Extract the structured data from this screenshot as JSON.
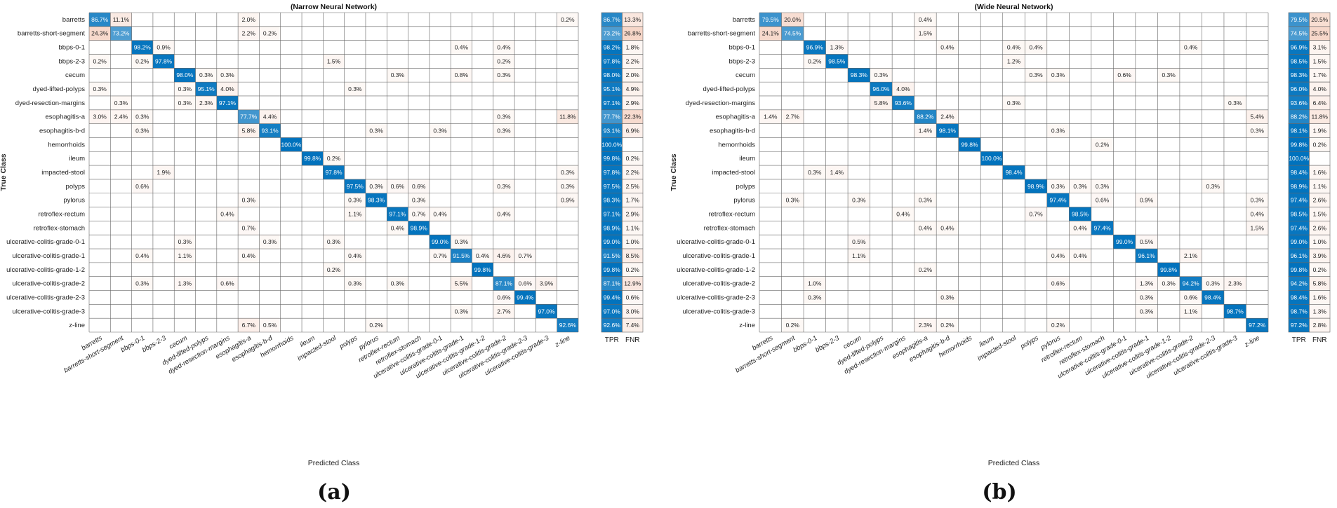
{
  "chart_data": [
    {
      "type": "heatmap",
      "title": "(Narrow Neural Network)",
      "panel_label": "(a)",
      "xlabel": "Predicted Class",
      "ylabel": "True Class",
      "summary_headers": [
        "TPR",
        "FNR"
      ],
      "classes": [
        "barretts",
        "barretts-short-segment",
        "bbps-0-1",
        "bbps-2-3",
        "cecum",
        "dyed-lifted-polyps",
        "dyed-resection-margins",
        "esophagitis-a",
        "esophagitis-b-d",
        "hemorrhoids",
        "ileum",
        "impacted-stool",
        "polyps",
        "pylorus",
        "retroflex-rectum",
        "retroflex-stomach",
        "ulcerative-colitis-grade-0-1",
        "ulcerative-colitis-grade-1",
        "ulcerative-colitis-grade-1-2",
        "ulcerative-colitis-grade-2",
        "ulcerative-colitis-grade-2-3",
        "ulcerative-colitis-grade-3",
        "z-line"
      ],
      "cells": [
        [
          0,
          0,
          "86.7%"
        ],
        [
          0,
          1,
          "11.1%"
        ],
        [
          0,
          7,
          "2.0%"
        ],
        [
          0,
          22,
          "0.2%"
        ],
        [
          1,
          0,
          "24.3%"
        ],
        [
          1,
          1,
          "73.2%"
        ],
        [
          1,
          7,
          "2.2%"
        ],
        [
          1,
          8,
          "0.2%"
        ],
        [
          2,
          2,
          "98.2%"
        ],
        [
          2,
          3,
          "0.9%"
        ],
        [
          2,
          17,
          "0.4%"
        ],
        [
          2,
          19,
          "0.4%"
        ],
        [
          3,
          0,
          "0.2%"
        ],
        [
          3,
          2,
          "0.2%"
        ],
        [
          3,
          3,
          "97.8%"
        ],
        [
          3,
          11,
          "1.5%"
        ],
        [
          3,
          19,
          "0.2%"
        ],
        [
          4,
          4,
          "98.0%"
        ],
        [
          4,
          5,
          "0.3%"
        ],
        [
          4,
          6,
          "0.3%"
        ],
        [
          4,
          14,
          "0.3%"
        ],
        [
          4,
          17,
          "0.8%"
        ],
        [
          4,
          19,
          "0.3%"
        ],
        [
          5,
          0,
          "0.3%"
        ],
        [
          5,
          4,
          "0.3%"
        ],
        [
          5,
          5,
          "95.1%"
        ],
        [
          5,
          6,
          "4.0%"
        ],
        [
          5,
          12,
          "0.3%"
        ],
        [
          6,
          1,
          "0.3%"
        ],
        [
          6,
          4,
          "0.3%"
        ],
        [
          6,
          5,
          "2.3%"
        ],
        [
          6,
          6,
          "97.1%"
        ],
        [
          7,
          0,
          "3.0%"
        ],
        [
          7,
          1,
          "2.4%"
        ],
        [
          7,
          2,
          "0.3%"
        ],
        [
          7,
          7,
          "77.7%"
        ],
        [
          7,
          8,
          "4.4%"
        ],
        [
          7,
          19,
          "0.3%"
        ],
        [
          7,
          22,
          "11.8%"
        ],
        [
          8,
          2,
          "0.3%"
        ],
        [
          8,
          7,
          "5.8%"
        ],
        [
          8,
          8,
          "93.1%"
        ],
        [
          8,
          13,
          "0.3%"
        ],
        [
          8,
          16,
          "0.3%"
        ],
        [
          8,
          19,
          "0.3%"
        ],
        [
          9,
          9,
          "100.0%"
        ],
        [
          10,
          10,
          "99.8%"
        ],
        [
          10,
          11,
          "0.2%"
        ],
        [
          11,
          3,
          "1.9%"
        ],
        [
          11,
          11,
          "97.8%"
        ],
        [
          11,
          22,
          "0.3%"
        ],
        [
          12,
          2,
          "0.6%"
        ],
        [
          12,
          12,
          "97.5%"
        ],
        [
          12,
          13,
          "0.3%"
        ],
        [
          12,
          14,
          "0.6%"
        ],
        [
          12,
          15,
          "0.6%"
        ],
        [
          12,
          19,
          "0.3%"
        ],
        [
          12,
          22,
          "0.3%"
        ],
        [
          13,
          7,
          "0.3%"
        ],
        [
          13,
          12,
          "0.3%"
        ],
        [
          13,
          13,
          "98.3%"
        ],
        [
          13,
          15,
          "0.3%"
        ],
        [
          13,
          22,
          "0.9%"
        ],
        [
          14,
          6,
          "0.4%"
        ],
        [
          14,
          12,
          "1.1%"
        ],
        [
          14,
          14,
          "97.1%"
        ],
        [
          14,
          15,
          "0.7%"
        ],
        [
          14,
          16,
          "0.4%"
        ],
        [
          14,
          19,
          "0.4%"
        ],
        [
          15,
          7,
          "0.7%"
        ],
        [
          15,
          14,
          "0.4%"
        ],
        [
          15,
          15,
          "98.9%"
        ],
        [
          16,
          4,
          "0.3%"
        ],
        [
          16,
          8,
          "0.3%"
        ],
        [
          16,
          11,
          "0.3%"
        ],
        [
          16,
          16,
          "99.0%"
        ],
        [
          16,
          17,
          "0.3%"
        ],
        [
          17,
          2,
          "0.4%"
        ],
        [
          17,
          4,
          "1.1%"
        ],
        [
          17,
          7,
          "0.4%"
        ],
        [
          17,
          12,
          "0.4%"
        ],
        [
          17,
          16,
          "0.7%"
        ],
        [
          17,
          17,
          "91.5%"
        ],
        [
          17,
          18,
          "0.4%"
        ],
        [
          17,
          19,
          "4.6%"
        ],
        [
          17,
          20,
          "0.7%"
        ],
        [
          18,
          11,
          "0.2%"
        ],
        [
          18,
          18,
          "99.8%"
        ],
        [
          19,
          2,
          "0.3%"
        ],
        [
          19,
          4,
          "1.3%"
        ],
        [
          19,
          6,
          "0.6%"
        ],
        [
          19,
          12,
          "0.3%"
        ],
        [
          19,
          14,
          "0.3%"
        ],
        [
          19,
          17,
          "5.5%"
        ],
        [
          19,
          19,
          "87.1%"
        ],
        [
          19,
          20,
          "0.6%"
        ],
        [
          19,
          21,
          "3.9%"
        ],
        [
          20,
          19,
          "0.6%"
        ],
        [
          20,
          20,
          "99.4%"
        ],
        [
          21,
          17,
          "0.3%"
        ],
        [
          21,
          19,
          "2.7%"
        ],
        [
          21,
          21,
          "97.0%"
        ],
        [
          22,
          7,
          "6.7%"
        ],
        [
          22,
          8,
          "0.5%"
        ],
        [
          22,
          13,
          "0.2%"
        ],
        [
          22,
          22,
          "92.6%"
        ]
      ],
      "tpr": [
        "86.7%",
        "73.2%",
        "98.2%",
        "97.8%",
        "98.0%",
        "95.1%",
        "97.1%",
        "77.7%",
        "93.1%",
        "100.0%",
        "99.8%",
        "97.8%",
        "97.5%",
        "98.3%",
        "97.1%",
        "98.9%",
        "99.0%",
        "91.5%",
        "99.8%",
        "87.1%",
        "99.4%",
        "97.0%",
        "92.6%"
      ],
      "fnr": [
        "13.3%",
        "26.8%",
        "1.8%",
        "2.2%",
        "2.0%",
        "4.9%",
        "2.9%",
        "22.3%",
        "6.9%",
        "",
        "0.2%",
        "2.2%",
        "2.5%",
        "1.7%",
        "2.9%",
        "1.1%",
        "1.0%",
        "8.5%",
        "0.2%",
        "12.9%",
        "0.6%",
        "3.0%",
        "7.4%"
      ]
    },
    {
      "type": "heatmap",
      "title": "(Wide Neural Network)",
      "panel_label": "(b)",
      "xlabel": "Predicted Class",
      "ylabel": "True Class",
      "summary_headers": [
        "TPR",
        "FNR"
      ],
      "classes": [
        "barretts",
        "barretts-short-segment",
        "bbps-0-1",
        "bbps-2-3",
        "cecum",
        "dyed-lifted-polyps",
        "dyed-resection-margins",
        "esophagitis-a",
        "esophagitis-b-d",
        "hemorrhoids",
        "ileum",
        "impacted-stool",
        "polyps",
        "pylorus",
        "retroflex-rectum",
        "retroflex-stomach",
        "ulcerative-colitis-grade-0-1",
        "ulcerative-colitis-grade-1",
        "ulcerative-colitis-grade-1-2",
        "ulcerative-colitis-grade-2",
        "ulcerative-colitis-grade-2-3",
        "ulcerative-colitis-grade-3",
        "z-line"
      ],
      "cells": [
        [
          0,
          0,
          "79.5%"
        ],
        [
          0,
          1,
          "20.0%"
        ],
        [
          0,
          7,
          "0.4%"
        ],
        [
          1,
          0,
          "24.1%"
        ],
        [
          1,
          1,
          "74.5%"
        ],
        [
          1,
          7,
          "1.5%"
        ],
        [
          2,
          2,
          "96.9%"
        ],
        [
          2,
          3,
          "1.3%"
        ],
        [
          2,
          8,
          "0.4%"
        ],
        [
          2,
          11,
          "0.4%"
        ],
        [
          2,
          12,
          "0.4%"
        ],
        [
          2,
          19,
          "0.4%"
        ],
        [
          3,
          2,
          "0.2%"
        ],
        [
          3,
          3,
          "98.5%"
        ],
        [
          3,
          11,
          "1.2%"
        ],
        [
          4,
          4,
          "98.3%"
        ],
        [
          4,
          5,
          "0.3%"
        ],
        [
          4,
          12,
          "0.3%"
        ],
        [
          4,
          13,
          "0.3%"
        ],
        [
          4,
          16,
          "0.6%"
        ],
        [
          4,
          18,
          "0.3%"
        ],
        [
          5,
          5,
          "96.0%"
        ],
        [
          5,
          6,
          "4.0%"
        ],
        [
          6,
          5,
          "5.8%"
        ],
        [
          6,
          6,
          "93.6%"
        ],
        [
          6,
          11,
          "0.3%"
        ],
        [
          6,
          21,
          "0.3%"
        ],
        [
          7,
          0,
          "1.4%"
        ],
        [
          7,
          1,
          "2.7%"
        ],
        [
          7,
          7,
          "88.2%"
        ],
        [
          7,
          8,
          "2.4%"
        ],
        [
          7,
          22,
          "5.4%"
        ],
        [
          8,
          7,
          "1.4%"
        ],
        [
          8,
          8,
          "98.1%"
        ],
        [
          8,
          13,
          "0.3%"
        ],
        [
          8,
          22,
          "0.3%"
        ],
        [
          9,
          9,
          "99.8%"
        ],
        [
          9,
          15,
          "0.2%"
        ],
        [
          10,
          10,
          "100.0%"
        ],
        [
          11,
          2,
          "0.3%"
        ],
        [
          11,
          3,
          "1.4%"
        ],
        [
          11,
          11,
          "98.4%"
        ],
        [
          12,
          12,
          "98.9%"
        ],
        [
          12,
          13,
          "0.3%"
        ],
        [
          12,
          14,
          "0.3%"
        ],
        [
          12,
          15,
          "0.3%"
        ],
        [
          12,
          20,
          "0.3%"
        ],
        [
          13,
          1,
          "0.3%"
        ],
        [
          13,
          4,
          "0.3%"
        ],
        [
          13,
          7,
          "0.3%"
        ],
        [
          13,
          13,
          "97.4%"
        ],
        [
          13,
          15,
          "0.6%"
        ],
        [
          13,
          17,
          "0.9%"
        ],
        [
          13,
          22,
          "0.3%"
        ],
        [
          14,
          6,
          "0.4%"
        ],
        [
          14,
          12,
          "0.7%"
        ],
        [
          14,
          14,
          "98.5%"
        ],
        [
          14,
          22,
          "0.4%"
        ],
        [
          15,
          7,
          "0.4%"
        ],
        [
          15,
          8,
          "0.4%"
        ],
        [
          15,
          14,
          "0.4%"
        ],
        [
          15,
          15,
          "97.4%"
        ],
        [
          15,
          22,
          "1.5%"
        ],
        [
          16,
          4,
          "0.5%"
        ],
        [
          16,
          16,
          "99.0%"
        ],
        [
          16,
          17,
          "0.5%"
        ],
        [
          17,
          4,
          "1.1%"
        ],
        [
          17,
          13,
          "0.4%"
        ],
        [
          17,
          14,
          "0.4%"
        ],
        [
          17,
          17,
          "96.1%"
        ],
        [
          17,
          19,
          "2.1%"
        ],
        [
          18,
          7,
          "0.2%"
        ],
        [
          18,
          18,
          "99.8%"
        ],
        [
          19,
          2,
          "1.0%"
        ],
        [
          19,
          13,
          "0.6%"
        ],
        [
          19,
          17,
          "1.3%"
        ],
        [
          19,
          18,
          "0.3%"
        ],
        [
          19,
          19,
          "94.2%"
        ],
        [
          19,
          20,
          "0.3%"
        ],
        [
          19,
          21,
          "2.3%"
        ],
        [
          20,
          2,
          "0.3%"
        ],
        [
          20,
          8,
          "0.3%"
        ],
        [
          20,
          17,
          "0.3%"
        ],
        [
          20,
          19,
          "0.6%"
        ],
        [
          20,
          20,
          "98.4%"
        ],
        [
          21,
          17,
          "0.3%"
        ],
        [
          21,
          19,
          "1.1%"
        ],
        [
          21,
          21,
          "98.7%"
        ],
        [
          22,
          1,
          "0.2%"
        ],
        [
          22,
          7,
          "2.3%"
        ],
        [
          22,
          8,
          "0.2%"
        ],
        [
          22,
          13,
          "0.2%"
        ],
        [
          22,
          22,
          "97.2%"
        ]
      ],
      "tpr": [
        "79.5%",
        "74.5%",
        "96.9%",
        "98.5%",
        "98.3%",
        "96.0%",
        "93.6%",
        "88.2%",
        "98.1%",
        "99.8%",
        "100.0%",
        "98.4%",
        "98.9%",
        "97.4%",
        "98.5%",
        "97.4%",
        "99.0%",
        "96.1%",
        "99.8%",
        "94.2%",
        "98.4%",
        "98.7%",
        "97.2%"
      ],
      "fnr": [
        "20.5%",
        "25.5%",
        "3.1%",
        "1.5%",
        "1.7%",
        "4.0%",
        "6.4%",
        "11.8%",
        "1.9%",
        "0.2%",
        "",
        "1.6%",
        "1.1%",
        "2.6%",
        "1.5%",
        "2.6%",
        "1.0%",
        "3.9%",
        "0.2%",
        "5.8%",
        "1.6%",
        "1.3%",
        "2.8%"
      ]
    }
  ]
}
